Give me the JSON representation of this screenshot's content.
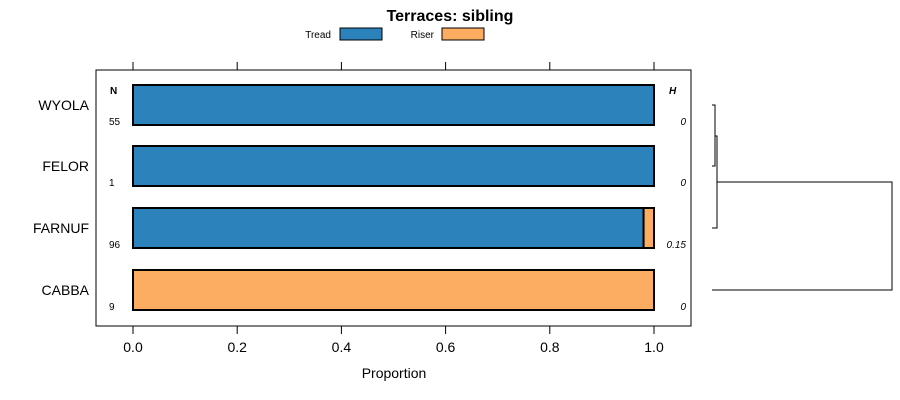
{
  "chart_data": {
    "type": "bar",
    "orientation": "horizontal",
    "stacked": true,
    "title": "Terraces: sibling",
    "xlabel": "Proportion",
    "ylabel": "",
    "xlim": [
      0,
      1
    ],
    "x_ticks": [
      "0.0",
      "0.2",
      "0.4",
      "0.6",
      "0.8",
      "1.0"
    ],
    "x_tick_values": [
      0,
      0.2,
      0.4,
      0.6,
      0.8,
      1.0
    ],
    "categories": [
      "WYOLA",
      "FELOR",
      "FARNUF",
      "CABBA"
    ],
    "series": [
      {
        "name": "Tread",
        "color": "#2c83bb",
        "values": [
          1.0,
          1.0,
          0.98,
          0.0
        ]
      },
      {
        "name": "Riser",
        "color": "#fdad61",
        "values": [
          0.0,
          0.0,
          0.02,
          1.0
        ]
      }
    ],
    "n_header": "N",
    "h_header": "H",
    "n_values": [
      "55",
      "1",
      "96",
      "9"
    ],
    "h_values": [
      "0",
      "0",
      "0.15",
      "0"
    ],
    "legend_position": "top",
    "dendrogram": "right"
  }
}
